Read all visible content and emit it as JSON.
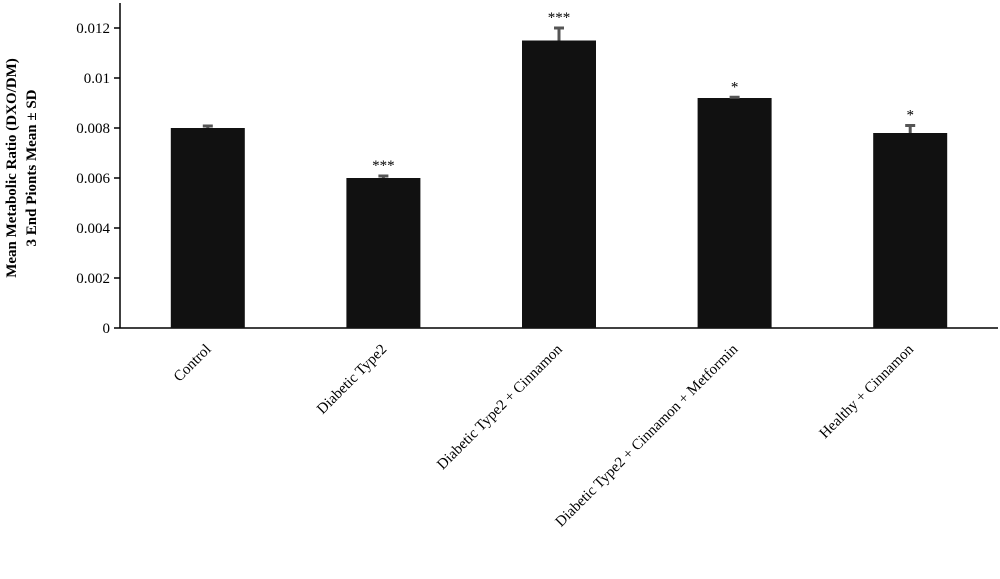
{
  "chart_data": {
    "type": "bar",
    "ylabel": [
      "Mean Metabolic Ratio (DXO/DM)",
      "3 End Pionts Mean ± SD"
    ],
    "categories": [
      "Control",
      "Diabetic Type2",
      "Diabetic Type2 + Cinnamon",
      "Diabetic Type2 + Cinnamon + Metformin",
      "Healthy + Cinnamon"
    ],
    "values": [
      0.008,
      0.006,
      0.0115,
      0.0092,
      0.0078
    ],
    "errors": [
      8e-05,
      8e-05,
      0.0005,
      3e-05,
      0.0003
    ],
    "annotations": [
      null,
      "***",
      "***",
      "*",
      "*"
    ],
    "color": "#111111",
    "error_color": "#555555",
    "ylim": [
      0,
      0.013
    ],
    "yticks": [
      0,
      0.002,
      0.004,
      0.006,
      0.008,
      0.01,
      0.012
    ]
  }
}
